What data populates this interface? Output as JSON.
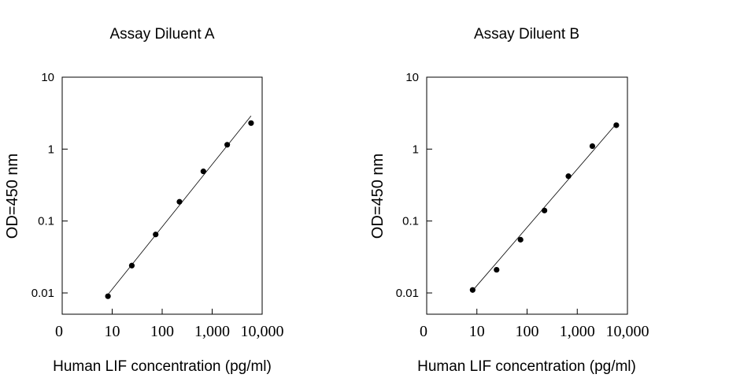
{
  "chart_data": [
    {
      "type": "scatter",
      "title": "Assay Diluent A",
      "xlabel": "Human LIF concentration (pg/ml)",
      "ylabel": "OD=450 nm",
      "x_scale": "log",
      "y_scale": "log",
      "xlim": [
        1,
        10000
      ],
      "ylim": [
        0.005,
        10
      ],
      "x_ticks": [
        {
          "value": 1,
          "label": "0"
        },
        {
          "value": 10,
          "label": "10"
        },
        {
          "value": 100,
          "label": "100"
        },
        {
          "value": 1000,
          "label": "1,000"
        },
        {
          "value": 10000,
          "label": "10,000"
        }
      ],
      "y_ticks": [
        {
          "value": 0.01,
          "label": "0.01"
        },
        {
          "value": 0.1,
          "label": "0.1"
        },
        {
          "value": 1,
          "label": "1"
        },
        {
          "value": 10,
          "label": "10"
        }
      ],
      "points": [
        {
          "x": 8.23,
          "y": 0.009
        },
        {
          "x": 24.7,
          "y": 0.024
        },
        {
          "x": 74.1,
          "y": 0.065
        },
        {
          "x": 222,
          "y": 0.185
        },
        {
          "x": 667,
          "y": 0.49
        },
        {
          "x": 2000,
          "y": 1.15
        },
        {
          "x": 6000,
          "y": 2.3
        }
      ],
      "fit_line": [
        {
          "x": 8.23,
          "y": 0.0095
        },
        {
          "x": 6000,
          "y": 2.9
        }
      ],
      "grid": false,
      "legend": "none"
    },
    {
      "type": "scatter",
      "title": "Assay Diluent B",
      "xlabel": "Human LIF concentration (pg/ml)",
      "ylabel": "OD=450 nm",
      "x_scale": "log",
      "y_scale": "log",
      "xlim": [
        1,
        10000
      ],
      "ylim": [
        0.005,
        10
      ],
      "x_ticks": [
        {
          "value": 1,
          "label": "0"
        },
        {
          "value": 10,
          "label": "10"
        },
        {
          "value": 100,
          "label": "100"
        },
        {
          "value": 1000,
          "label": "1,000"
        },
        {
          "value": 10000,
          "label": "10,000"
        }
      ],
      "y_ticks": [
        {
          "value": 0.01,
          "label": "0.01"
        },
        {
          "value": 0.1,
          "label": "0.1"
        },
        {
          "value": 1,
          "label": "1"
        },
        {
          "value": 10,
          "label": "10"
        }
      ],
      "points": [
        {
          "x": 8.23,
          "y": 0.011
        },
        {
          "x": 24.7,
          "y": 0.021
        },
        {
          "x": 74.1,
          "y": 0.055
        },
        {
          "x": 222,
          "y": 0.14
        },
        {
          "x": 667,
          "y": 0.42
        },
        {
          "x": 2000,
          "y": 1.1
        },
        {
          "x": 6000,
          "y": 2.15
        }
      ],
      "fit_line": [
        {
          "x": 8.23,
          "y": 0.0108
        },
        {
          "x": 6000,
          "y": 2.25
        }
      ],
      "grid": false,
      "legend": "none"
    }
  ]
}
